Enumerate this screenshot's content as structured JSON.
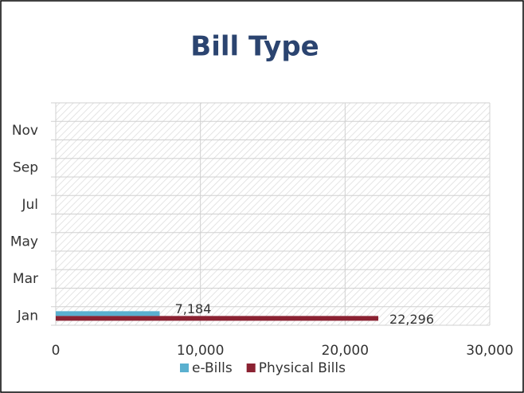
{
  "chart_data": {
    "type": "hbar",
    "title": "Bill Type",
    "categories": [
      "Jan",
      null,
      "Mar",
      null,
      "May",
      null,
      "Jul",
      null,
      "Sep",
      null,
      "Nov",
      null
    ],
    "series": [
      {
        "name": "e-Bills",
        "color": "#5ab0cf",
        "values": [
          7184,
          null,
          null,
          null,
          null,
          null,
          null,
          null,
          null,
          null,
          null,
          null
        ],
        "value_labels": [
          "7,184",
          null,
          null,
          null,
          null,
          null,
          null,
          null,
          null,
          null,
          null,
          null
        ]
      },
      {
        "name": "Physical Bills",
        "color": "#8b2232",
        "values": [
          22296,
          null,
          null,
          null,
          null,
          null,
          null,
          null,
          null,
          null,
          null,
          null
        ],
        "value_labels": [
          "22,296",
          null,
          null,
          null,
          null,
          null,
          null,
          null,
          null,
          null,
          null,
          null
        ]
      }
    ],
    "xlim": [
      0,
      30000
    ],
    "xticks": [
      0,
      {
        "value": 10000,
        "label": "10,000"
      },
      {
        "value": 20000,
        "label": "20,000"
      },
      {
        "value": 30000,
        "label": "30,000"
      }
    ],
    "grid": true,
    "legend": "bottom"
  }
}
